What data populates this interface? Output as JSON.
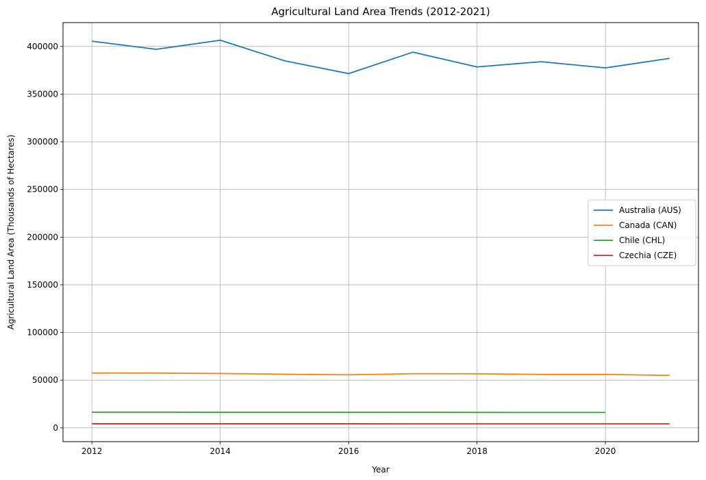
{
  "chart_data": {
    "type": "line",
    "title": "Agricultural Land Area Trends (2012-2021)",
    "xlabel": "Year",
    "ylabel": "Agricultural Land Area (Thousands of Hectares)",
    "xlim": [
      2011.55,
      2021.45
    ],
    "ylim": [
      -14500,
      425000
    ],
    "xticks": [
      2012,
      2014,
      2016,
      2018,
      2020
    ],
    "yticks": [
      0,
      50000,
      100000,
      150000,
      200000,
      250000,
      300000,
      350000,
      400000
    ],
    "grid": true,
    "legend_position": "center-right",
    "series": [
      {
        "name": "Australia (AUS)",
        "color": "#1f77b4",
        "x": [
          2012,
          2013,
          2014,
          2015,
          2016,
          2017,
          2018,
          2019,
          2020,
          2021
        ],
        "values": [
          405500,
          397000,
          406500,
          385000,
          371500,
          394000,
          378500,
          384000,
          377500,
          387500
        ]
      },
      {
        "name": "Canada (CAN)",
        "color": "#ff7f0e",
        "x": [
          2012,
          2013,
          2014,
          2015,
          2016,
          2017,
          2018,
          2019,
          2020,
          2021
        ],
        "values": [
          57500,
          57400,
          57000,
          56200,
          55600,
          56800,
          56700,
          56000,
          56000,
          55000
        ]
      },
      {
        "name": "Chile (CHL)",
        "color": "#2ca02c",
        "x": [
          2012,
          2013,
          2014,
          2015,
          2016,
          2017,
          2018,
          2019,
          2020
        ],
        "values": [
          16400,
          16400,
          16300,
          16300,
          16300,
          16300,
          16200,
          16100,
          16100
        ]
      },
      {
        "name": "Czechia (CZE)",
        "color": "#d62728",
        "x": [
          2012,
          2013,
          2014,
          2015,
          2016,
          2017,
          2018,
          2019,
          2020,
          2021
        ],
        "values": [
          4220,
          4215,
          4210,
          4205,
          4200,
          4195,
          4190,
          4185,
          4180,
          4175
        ]
      }
    ]
  }
}
